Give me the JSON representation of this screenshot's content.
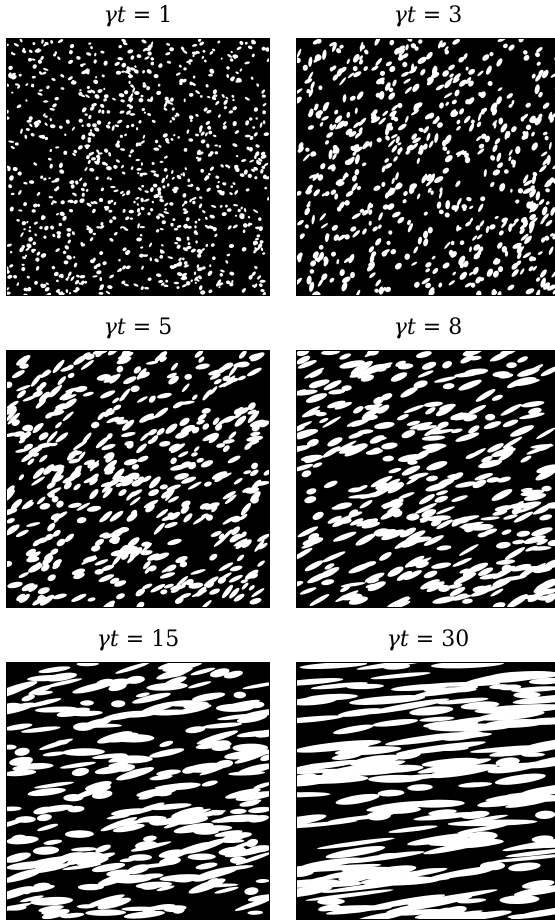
{
  "panels": [
    {
      "id": "p1",
      "title_sym": "γt",
      "title_eq": " = ",
      "title_val": "1"
    },
    {
      "id": "p2",
      "title_sym": "γt",
      "title_eq": " = ",
      "title_val": "3"
    },
    {
      "id": "p3",
      "title_sym": "γt",
      "title_eq": " = ",
      "title_val": "5"
    },
    {
      "id": "p4",
      "title_sym": "γt",
      "title_eq": " = ",
      "title_val": "8"
    },
    {
      "id": "p5",
      "title_sym": "γt",
      "title_eq": " = ",
      "title_val": "15"
    },
    {
      "id": "p6",
      "title_sym": "γt",
      "title_eq": " = ",
      "title_val": "30"
    }
  ],
  "colors": {
    "background": "#000000",
    "phase": "#ffffff",
    "frame": "#000000"
  }
}
